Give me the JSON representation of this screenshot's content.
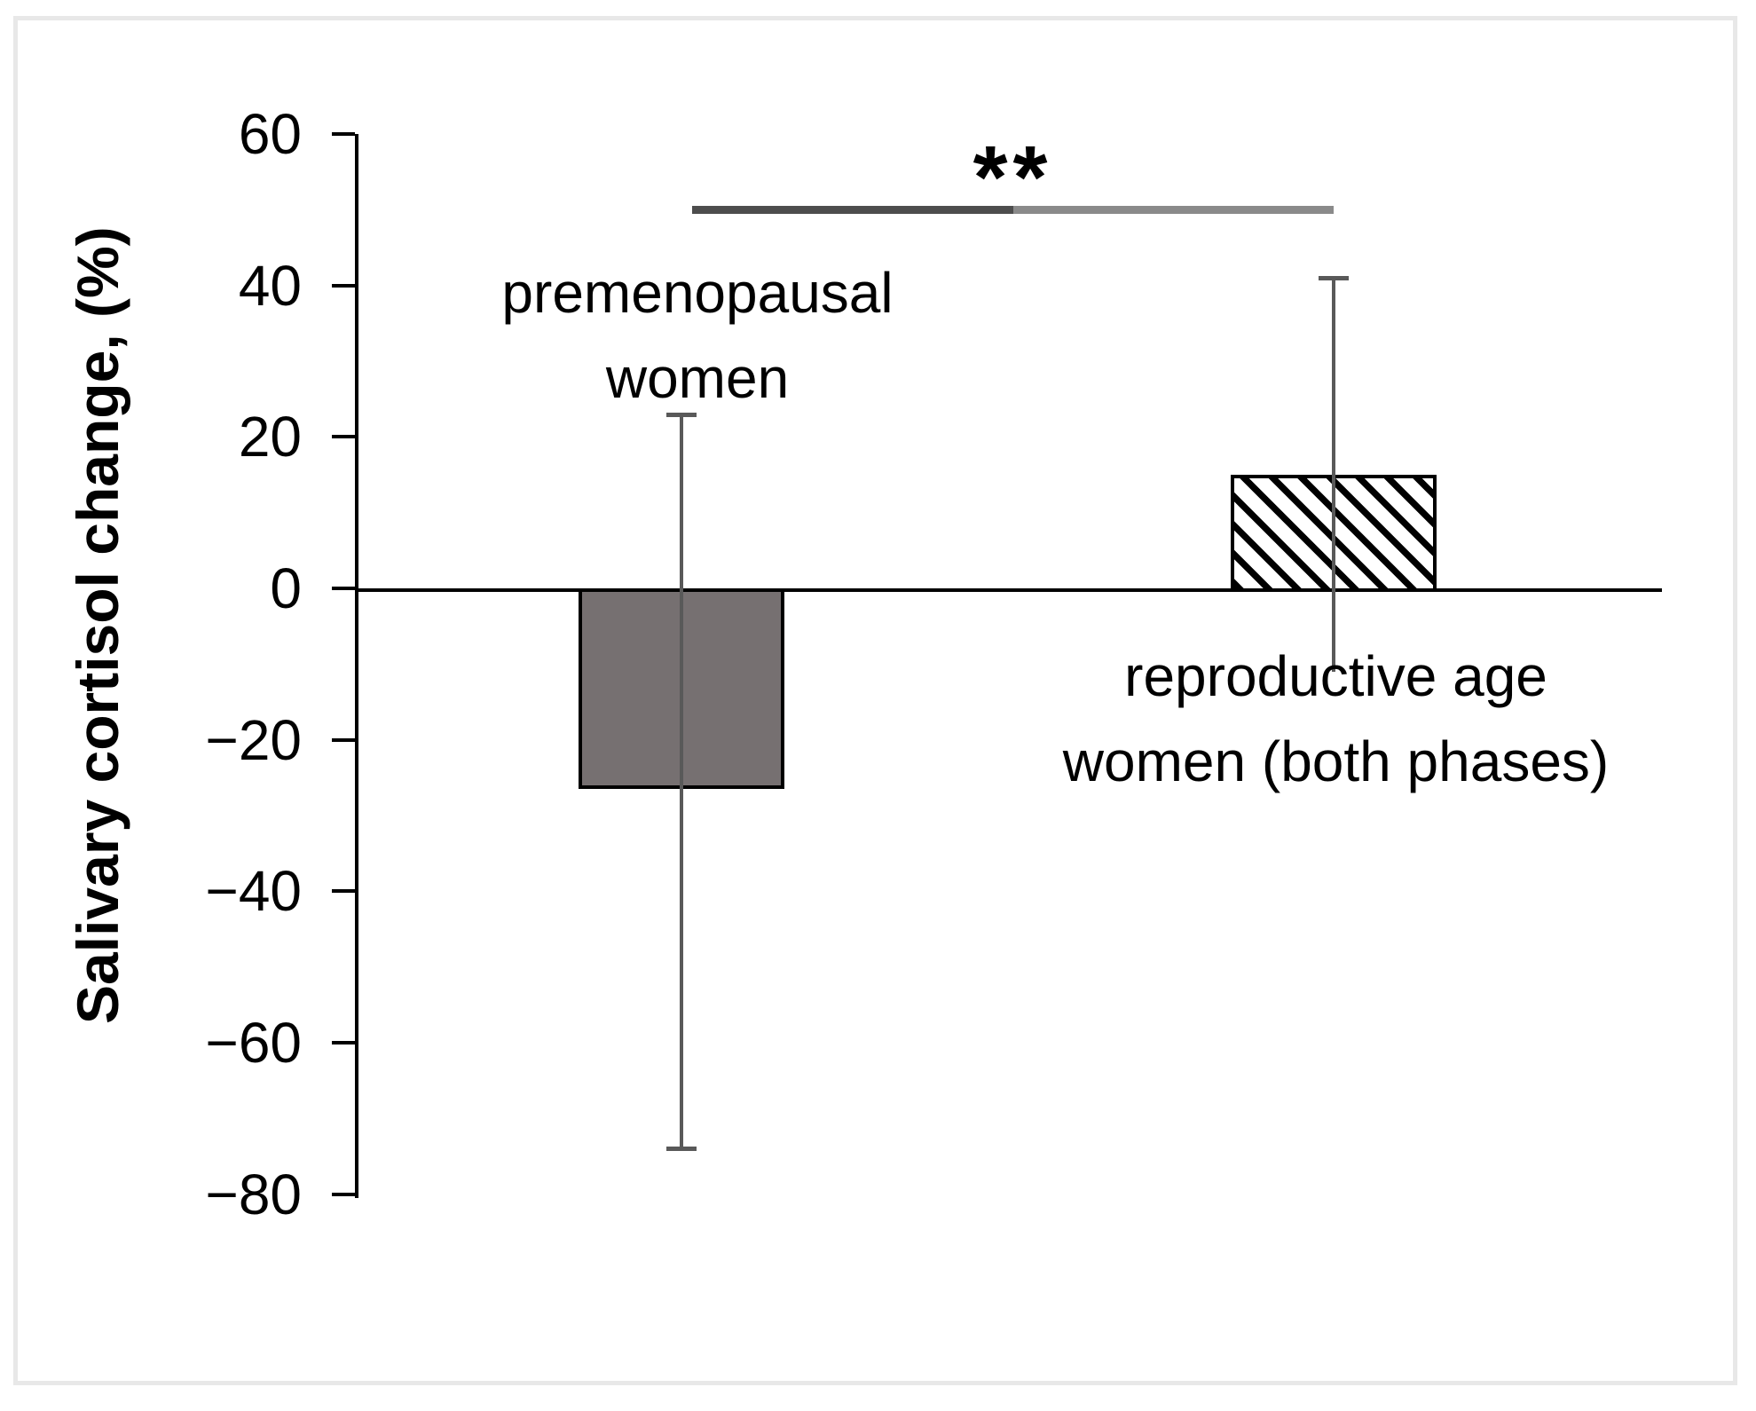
{
  "chart_data": {
    "type": "bar",
    "title": "",
    "xlabel": "",
    "ylabel": "Salivary cortisol change, (%)",
    "categories": [
      "premenopausal women",
      "reproductive age women (both phases)"
    ],
    "values": [
      -26,
      15
    ],
    "error_whisker_top": [
      23,
      41
    ],
    "error_whisker_bottom": [
      -74,
      -11
    ],
    "error_caps": {
      "top": [
        true,
        true
      ],
      "bottom": [
        true,
        false
      ]
    },
    "ylim": [
      -80,
      60
    ],
    "yticks": [
      60,
      40,
      20,
      0,
      -20,
      -40,
      -60,
      -80
    ],
    "grid": false,
    "legend": false,
    "significance": {
      "label": "**",
      "line_y": 50,
      "from_category": 0,
      "to_category": 1
    },
    "bar_styles": [
      {
        "name": "solid-gray",
        "fill": "#767071"
      },
      {
        "name": "diagonal-hatch",
        "fill": "#ffffff",
        "hatch_color": "#000000"
      }
    ],
    "colors": {
      "axis": "#000000",
      "error_bar": "#595959",
      "sig_line_left": "#4d4d4d",
      "sig_line_right": "#8a8a8a",
      "frame_border": "#e8e8e8",
      "text": "#000000"
    }
  },
  "category_label_lines": [
    [
      "premenopausal",
      "women"
    ],
    [
      "reproductive age",
      "women (both phases)"
    ]
  ]
}
